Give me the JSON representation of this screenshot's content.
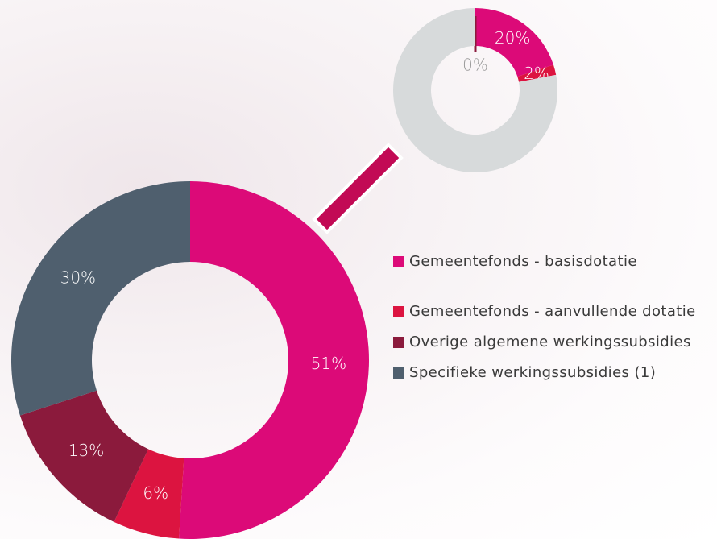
{
  "chart_data": [
    {
      "type": "donut",
      "categories": [
        "Gemeentefonds - basisdotatie",
        "Gemeentefonds - aanvullende dotatie",
        "Overige algemene werkingssubsidies",
        "Specifieke werkingssubsidies (1)"
      ],
      "values": [
        51,
        6,
        13,
        30
      ],
      "value_labels": [
        "51%",
        "6%",
        "13%",
        "30%"
      ],
      "colors": [
        "#dc0a78",
        "#dc1440",
        "#8b1a3c",
        "#4f5f6e"
      ]
    },
    {
      "type": "donut",
      "values": [
        20,
        2,
        0,
        78
      ],
      "value_labels": [
        "20%",
        "2%",
        "0%",
        null
      ],
      "colors": [
        "#dc0a78",
        "#dc1440",
        "#8b1a3c",
        "#d7dadb"
      ]
    }
  ]
}
